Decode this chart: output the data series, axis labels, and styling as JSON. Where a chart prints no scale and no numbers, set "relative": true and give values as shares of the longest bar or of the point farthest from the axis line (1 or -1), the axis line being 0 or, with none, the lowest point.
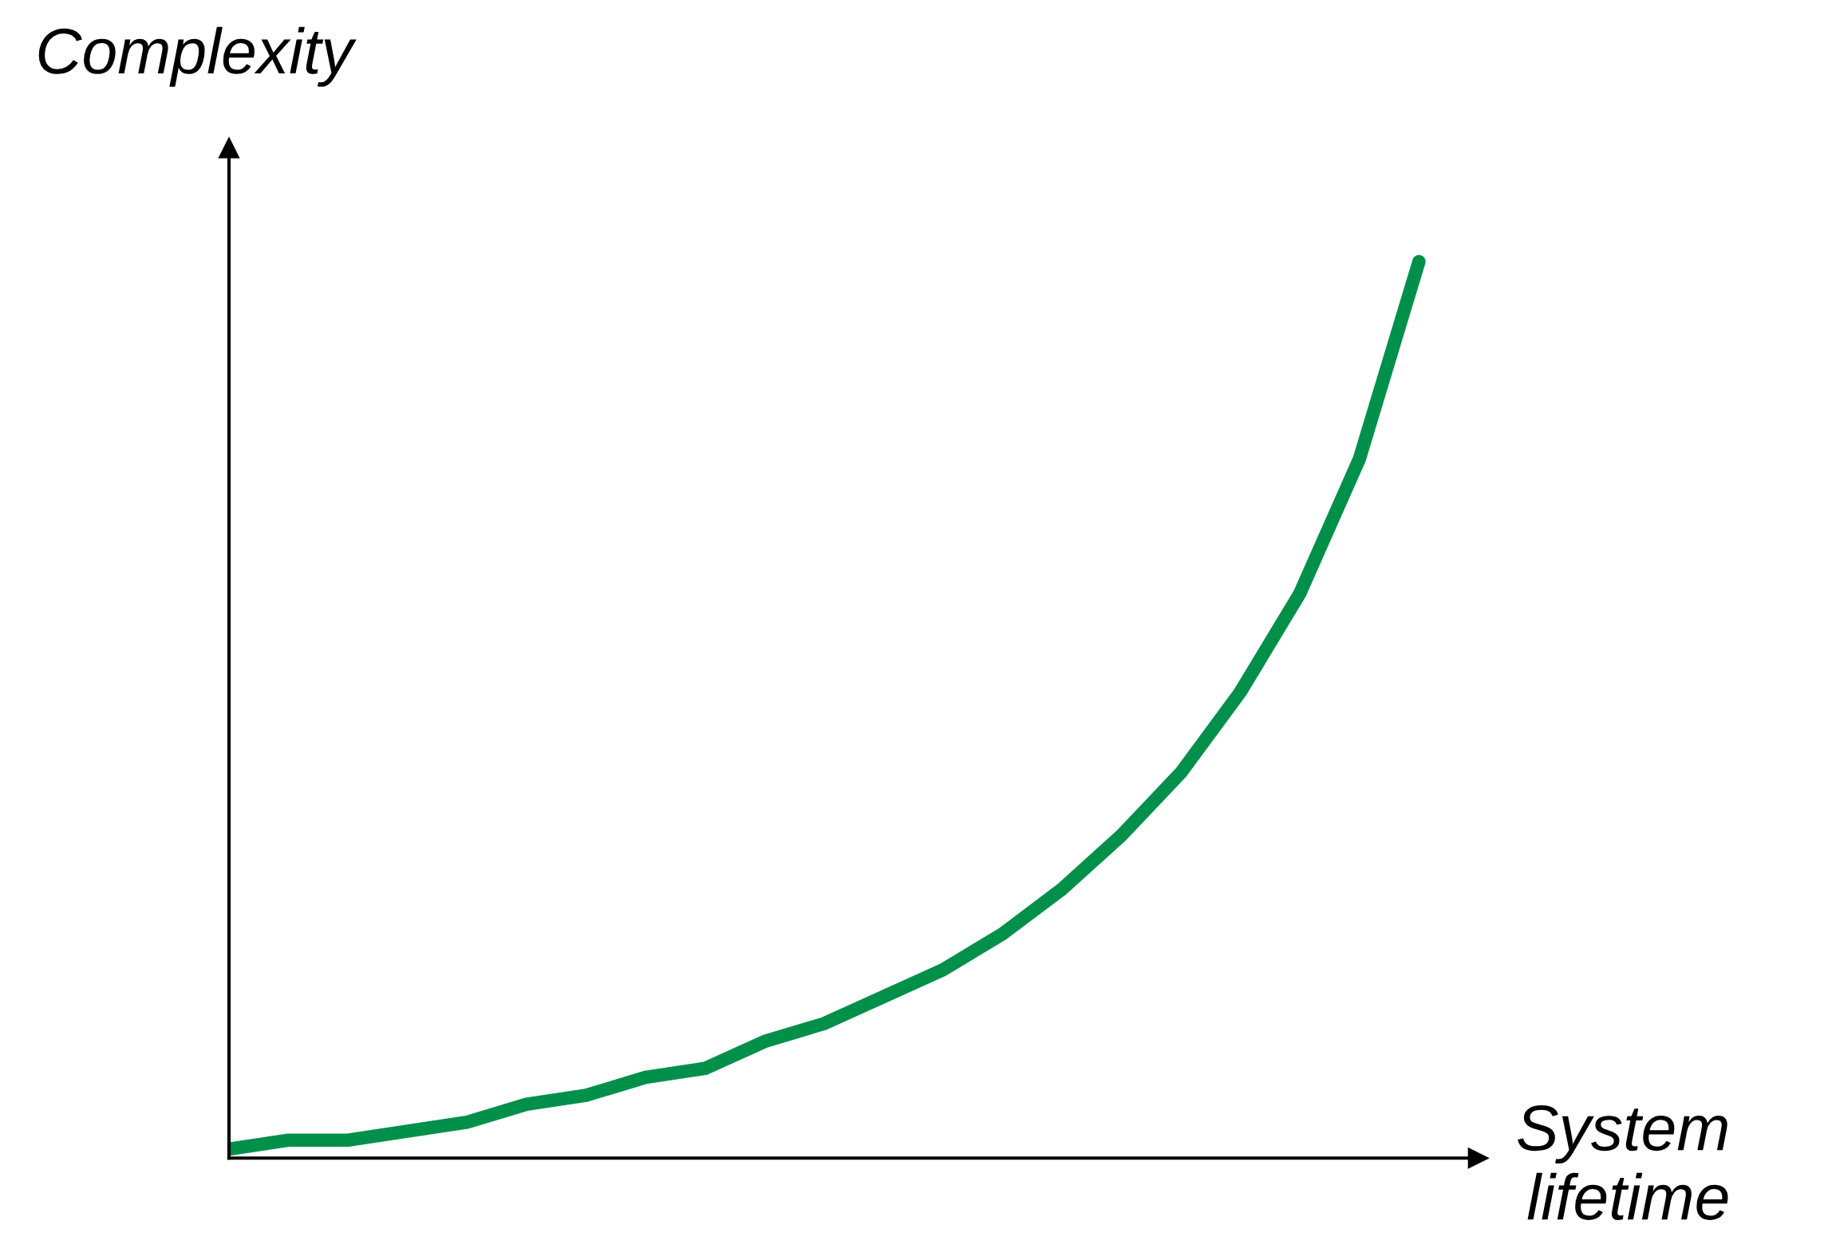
{
  "chart_data": {
    "type": "line",
    "relative": true,
    "xlabel": "System\nlifetime",
    "ylabel": "Complexity",
    "categories": [
      null,
      null,
      null,
      null,
      null,
      null,
      null,
      null,
      null,
      null,
      null,
      null,
      null,
      null,
      null,
      null,
      null,
      null,
      null,
      null,
      null
    ],
    "series": [
      {
        "color": "#00904a",
        "values": [
          0.01,
          0.02,
          0.02,
          0.03,
          0.04,
          0.06,
          0.07,
          0.09,
          0.1,
          0.13,
          0.15,
          0.18,
          0.21,
          0.25,
          0.3,
          0.36,
          0.43,
          0.52,
          0.63,
          0.78,
          1.0
        ]
      }
    ],
    "grid": false,
    "legend": false,
    "marker": "none",
    "line_style": "solid"
  }
}
